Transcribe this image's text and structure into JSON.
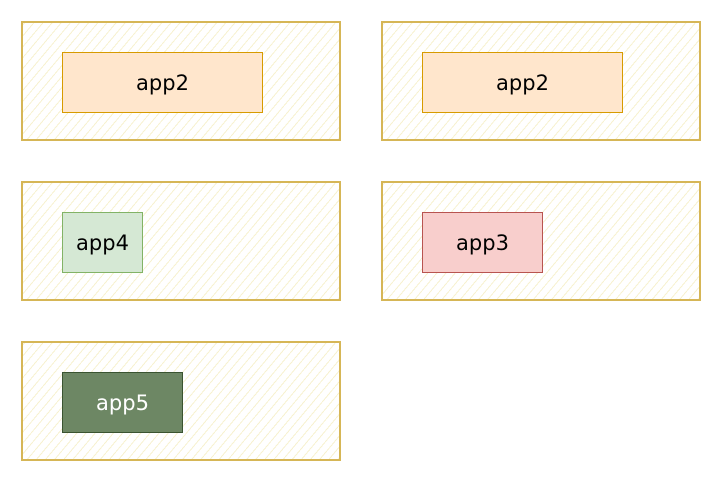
{
  "colors": {
    "container_border": "#d6b656",
    "container_hatch": "#f0e6aa",
    "orange_fill": "#ffe6cc",
    "orange_border": "#d79b00",
    "green_light_fill": "#d5e8d4",
    "green_light_border": "#82b366",
    "red_fill": "#f8cecc",
    "red_border": "#b85450",
    "green_dark_fill": "#6d8764",
    "green_dark_border": "#3a5431"
  },
  "boxes": [
    {
      "label": "app2",
      "fill": "#ffe6cc",
      "border": "#d79b00",
      "text_color": "#000000"
    },
    {
      "label": "app2",
      "fill": "#ffe6cc",
      "border": "#d79b00",
      "text_color": "#000000"
    },
    {
      "label": "app4",
      "fill": "#d5e8d4",
      "border": "#82b366",
      "text_color": "#000000"
    },
    {
      "label": "app3",
      "fill": "#f8cecc",
      "border": "#b85450",
      "text_color": "#000000"
    },
    {
      "label": "app5",
      "fill": "#6d8764",
      "border": "#3a5431",
      "text_color": "#ffffff"
    }
  ]
}
